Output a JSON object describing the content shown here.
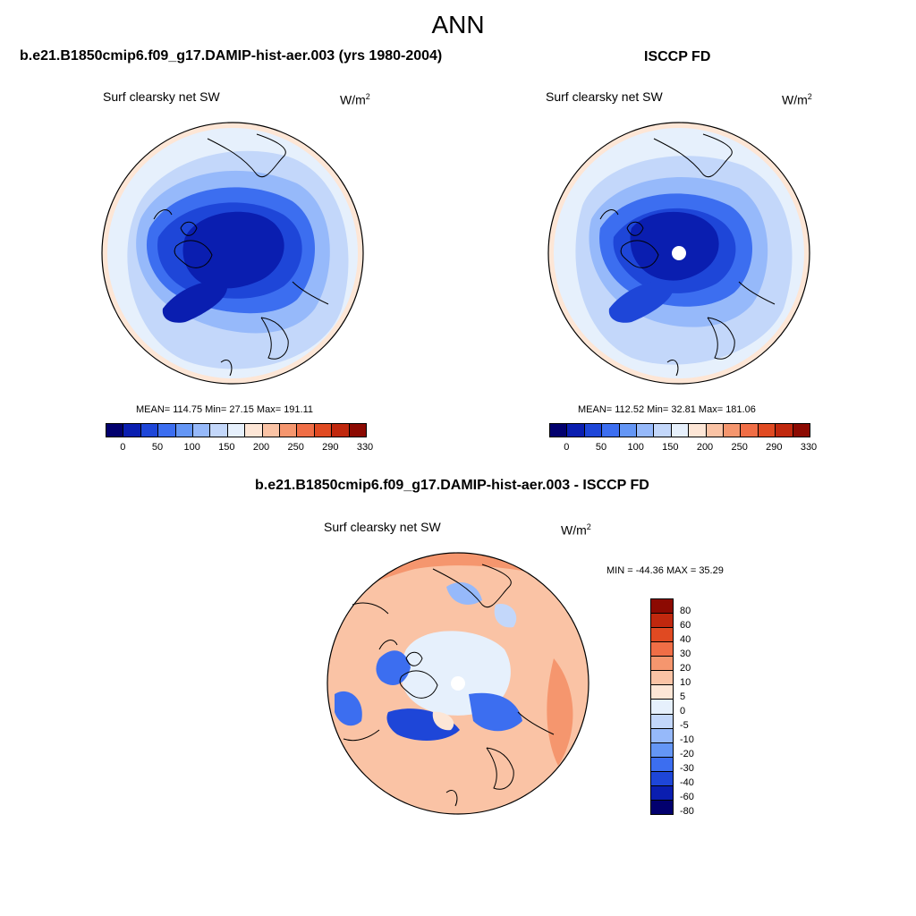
{
  "figure": {
    "title": "ANN"
  },
  "panels": [
    {
      "title": "b.e21.B1850cmip6.f09_g17.DAMIP-hist-aer.003 (yrs 1980-2004)",
      "variable": "Surf clearsky net SW",
      "units_base": "W/m",
      "units_exp": "2",
      "stats": "MEAN= 114.75  Min=  27.15  Max= 191.11"
    },
    {
      "title": "ISCCP FD",
      "variable": "Surf clearsky net SW",
      "units_base": "W/m",
      "units_exp": "2",
      "stats": "MEAN= 112.52  Min=  32.81  Max= 181.06"
    },
    {
      "title": "b.e21.B1850cmip6.f09_g17.DAMIP-hist-aer.003 - ISCCP FD",
      "variable": "Surf clearsky net SW",
      "units_base": "W/m",
      "units_exp": "2",
      "stats": "MIN = -44.36 MAX =  35.29"
    }
  ],
  "colorbar_abs": {
    "colors": [
      "#02006e",
      "#0a1eb0",
      "#1e46d8",
      "#3c6ef0",
      "#6496f5",
      "#96b9fa",
      "#c3d7fa",
      "#e6f0fc",
      "#fde6d6",
      "#fac3a5",
      "#f5966e",
      "#f06e46",
      "#e04a22",
      "#c0280e",
      "#8c0a02"
    ],
    "labels": [
      "0",
      "50",
      "100",
      "150",
      "200",
      "250",
      "290",
      "330"
    ]
  },
  "colorbar_diff": {
    "colors": [
      "#8c0a02",
      "#c0280e",
      "#e04a22",
      "#f06e46",
      "#f5966e",
      "#fac3a5",
      "#fde6d6",
      "#e6f0fc",
      "#c3d7fa",
      "#96b9fa",
      "#6496f5",
      "#3c6ef0",
      "#1e46d8",
      "#0a1eb0",
      "#02006e"
    ],
    "labels": [
      "80",
      "60",
      "40",
      "30",
      "20",
      "10",
      "5",
      "0",
      "-5",
      "-10",
      "-20",
      "-30",
      "-40",
      "-60",
      "-80"
    ]
  },
  "colors": {
    "blue_dark": "#0a1eb0",
    "blue_mid": "#1e46d8",
    "blue_med": "#3c6ef0",
    "blue_light": "#96b9fa",
    "blue_pale": "#c3d7fa",
    "blue_faint": "#e6f0fc",
    "peach": "#fde6d6",
    "orange_light": "#fac3a5",
    "orange_mid": "#f5966e"
  }
}
